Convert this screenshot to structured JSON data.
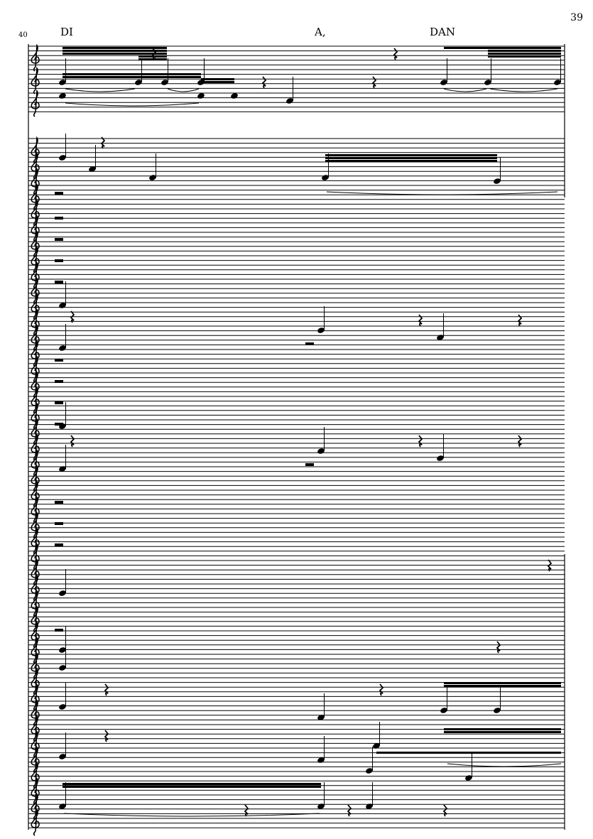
{
  "page": {
    "page_number": "39",
    "measure_number": "40"
  },
  "lyrics": [
    {
      "text": "DI"
    },
    {
      "text": "A,"
    },
    {
      "text": "DAN"
    }
  ],
  "colors": {
    "ink": "#000000",
    "staff_line_grey": "#777777"
  },
  "icons": {
    "clef": "treble-clef-icon",
    "rest": "quarter-rest-icon"
  }
}
